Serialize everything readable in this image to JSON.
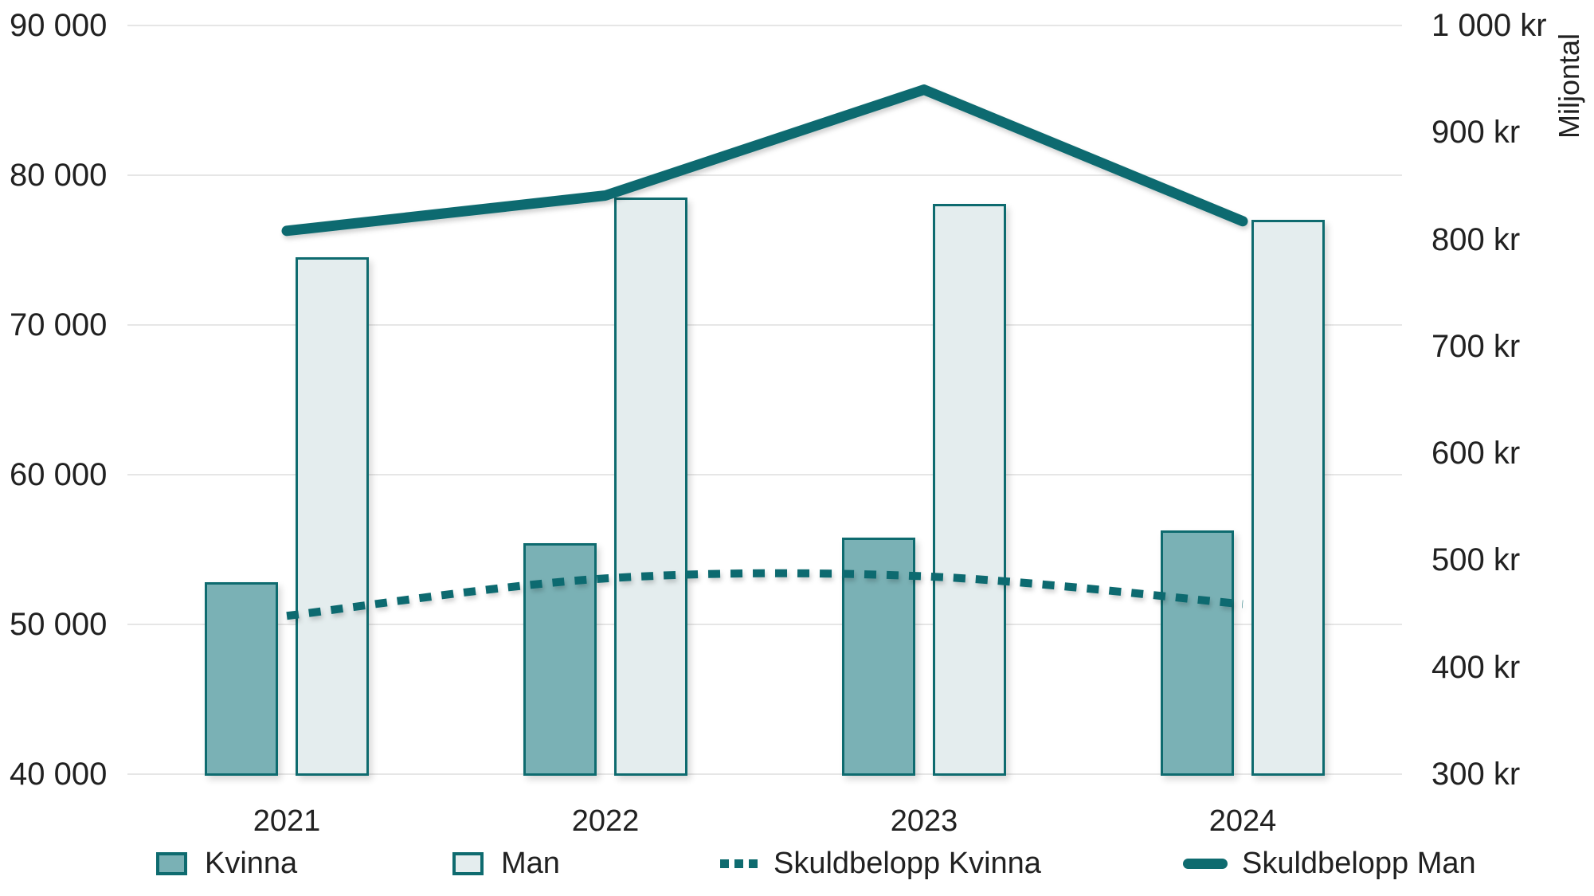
{
  "chart_data": {
    "type": "combo-bar-line",
    "title": "",
    "categories": [
      "2021",
      "2022",
      "2023",
      "2024"
    ],
    "series": [
      {
        "name": "Kvinna",
        "type": "bar",
        "axis": "left",
        "values": [
          52800,
          55400,
          55800,
          56300
        ]
      },
      {
        "name": "Man",
        "type": "bar",
        "axis": "left",
        "values": [
          74500,
          78500,
          78100,
          77000
        ]
      },
      {
        "name": "Skuldbelopp Kvinna",
        "type": "line",
        "style": "dotted",
        "axis": "right",
        "values": [
          448,
          483,
          485,
          459
        ]
      },
      {
        "name": "Skuldbelopp Man",
        "type": "line",
        "style": "solid",
        "axis": "right",
        "values": [
          808,
          841,
          940,
          817
        ]
      }
    ],
    "left_axis": {
      "min": 40000,
      "max": 90000,
      "step": 10000,
      "tick_labels": [
        "90 000",
        "80 000",
        "70 000",
        "60 000",
        "50 000",
        "40 000"
      ]
    },
    "right_axis": {
      "min": 300,
      "max": 1000,
      "step": 100,
      "title": "Miljontal",
      "tick_labels": [
        "1 000 kr",
        "900 kr",
        "800 kr",
        "700 kr",
        "600 kr",
        "500 kr",
        "400 kr",
        "300 kr"
      ]
    },
    "grid": "horizontal",
    "legend_position": "bottom"
  },
  "colors": {
    "accent_teal": "#0e6b6f",
    "kvinna_fill": "#7ab1b5",
    "man_fill": "#e4edee",
    "gridline": "#e6e6e6",
    "text": "#212121",
    "background": "#ffffff"
  }
}
